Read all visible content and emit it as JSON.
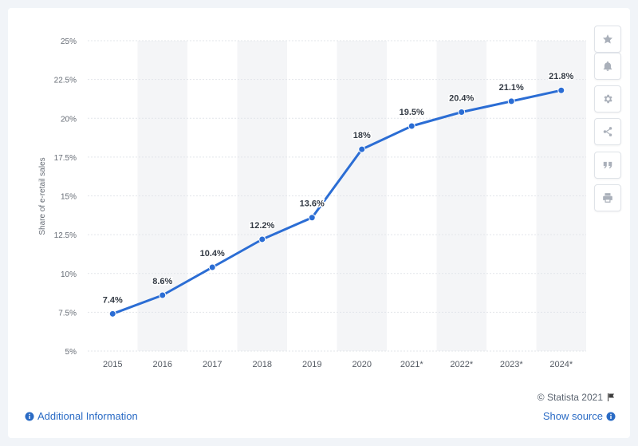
{
  "chart_data": {
    "type": "line",
    "categories": [
      "2015",
      "2016",
      "2017",
      "2018",
      "2019",
      "2020",
      "2021*",
      "2022*",
      "2023*",
      "2024*"
    ],
    "values": [
      7.4,
      8.6,
      10.4,
      12.2,
      13.6,
      18,
      19.5,
      20.4,
      21.1,
      21.8
    ],
    "data_labels": [
      "7.4%",
      "8.6%",
      "10.4%",
      "12.2%",
      "13.6%",
      "18%",
      "19.5%",
      "20.4%",
      "21.1%",
      "21.8%"
    ],
    "ylabel": "Share of e-retail sales",
    "xlabel": "",
    "ylim": [
      5,
      25
    ],
    "yticks": [
      5,
      7.5,
      10,
      12.5,
      15,
      17.5,
      20,
      22.5,
      25
    ],
    "ytick_labels": [
      "5%",
      "7.5%",
      "10%",
      "12.5%",
      "15%",
      "17.5%",
      "20%",
      "22.5%",
      "25%"
    ],
    "grid": true,
    "line_color": "#2b6dd4",
    "band_color": "#f4f5f7"
  },
  "toolbar": {
    "icons": [
      "star-icon",
      "bell-icon",
      "gear-icon",
      "share-icon",
      "quote-icon",
      "print-icon"
    ]
  },
  "footer": {
    "credit": "© Statista 2021",
    "additional_info": "Additional Information",
    "show_source": "Show source"
  }
}
